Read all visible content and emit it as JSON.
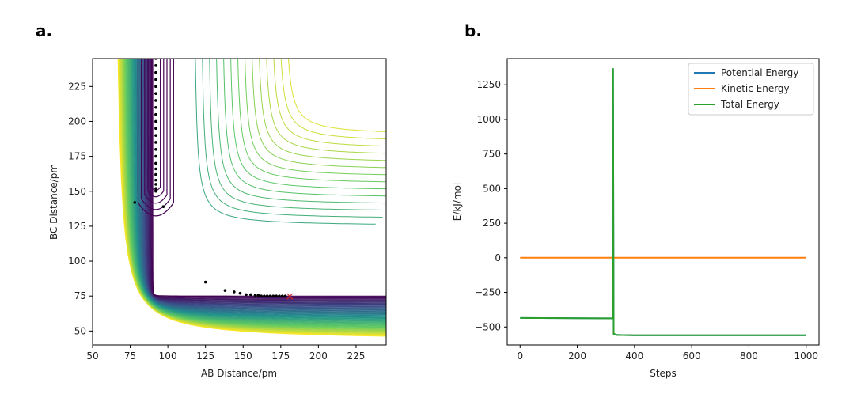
{
  "panels": {
    "a_label": "a.",
    "b_label": "b."
  },
  "chart_data": [
    {
      "type": "contour",
      "title": "",
      "xlabel": "AB Distance/pm",
      "ylabel": "BC Distance/pm",
      "xlim": [
        50,
        245
      ],
      "ylim": [
        40,
        245
      ],
      "xticks": [
        50,
        75,
        100,
        125,
        150,
        175,
        200,
        225
      ],
      "yticks": [
        50,
        75,
        100,
        125,
        150,
        175,
        200,
        225
      ],
      "colormap": [
        "#fde725",
        "#5ec962",
        "#21918c",
        "#3b528b",
        "#440154"
      ],
      "trajectory": {
        "x": [
          92,
          92,
          92,
          92,
          92,
          92,
          92,
          92,
          92,
          92,
          92,
          92,
          92,
          92,
          92,
          92,
          92,
          92,
          92,
          92,
          92,
          92,
          78,
          97,
          125,
          138,
          144,
          148,
          152,
          155,
          158,
          160,
          162,
          164,
          166,
          168,
          170,
          172,
          174,
          176,
          178
        ],
        "y": [
          245,
          240,
          235,
          230,
          225,
          220,
          215,
          210,
          205,
          200,
          195,
          190,
          185,
          180,
          175,
          170,
          166,
          162,
          158,
          155,
          152,
          150,
          142,
          139,
          85,
          79,
          78,
          77,
          76,
          76,
          75.5,
          75.5,
          75,
          75,
          75,
          75,
          75,
          75,
          75,
          75,
          75
        ],
        "color": "#000000"
      },
      "end_marker": {
        "x": 181,
        "y": 75,
        "symbol": "×",
        "color": "#d62728"
      }
    },
    {
      "type": "line",
      "title": "",
      "xlabel": "Steps",
      "ylabel": "E/kJ/mol",
      "xlim": [
        -45,
        1045
      ],
      "ylim": [
        -630,
        1440
      ],
      "xticks": [
        0,
        200,
        400,
        600,
        800,
        1000
      ],
      "yticks": [
        -500,
        -250,
        0,
        250,
        500,
        750,
        1000,
        1250
      ],
      "legend_position": "top-right",
      "series": [
        {
          "name": "Potential Energy",
          "color": "#1f77b4",
          "x": [
            0,
            325,
            325,
            327,
            340,
            400,
            600,
            1000
          ],
          "y": [
            -435,
            -438,
            1370,
            -550,
            -558,
            -560,
            -560,
            -560
          ]
        },
        {
          "name": "Kinetic Energy",
          "color": "#ff7f0e",
          "x": [
            0,
            1000
          ],
          "y": [
            0,
            0
          ]
        },
        {
          "name": "Total Energy",
          "color": "#2ca02c",
          "x": [
            0,
            325,
            325,
            327,
            340,
            400,
            600,
            1000
          ],
          "y": [
            -435,
            -438,
            1370,
            -550,
            -558,
            -560,
            -560,
            -560
          ]
        }
      ]
    }
  ]
}
